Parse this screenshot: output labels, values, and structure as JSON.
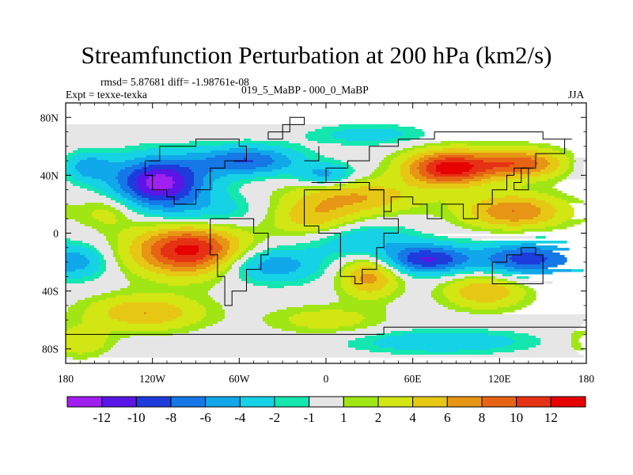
{
  "title": "Streamfunction Perturbation at 200 hPa (km2/s)",
  "stats": {
    "rmsd": "rmsd= 5.87681 diff= -1.98761e-08",
    "experiment": "Expt = texxe-texka",
    "comparison": "019_5_MaBP - 000_0_MaBP",
    "season": "JJA"
  },
  "map": {
    "projection": "cylindrical equidistant",
    "lon_range": [
      -180,
      180
    ],
    "lat_range": [
      -90,
      90
    ],
    "lon_ticks": [
      {
        "value": -180,
        "label": "180"
      },
      {
        "value": -120,
        "label": "120W"
      },
      {
        "value": -60,
        "label": "60W"
      },
      {
        "value": 0,
        "label": "0"
      },
      {
        "value": 60,
        "label": "60E"
      },
      {
        "value": 120,
        "label": "120E"
      },
      {
        "value": 180,
        "label": "180"
      }
    ],
    "lat_ticks": [
      {
        "value": 80,
        "label": "80N"
      },
      {
        "value": 40,
        "label": "40N"
      },
      {
        "value": 0,
        "label": "0"
      },
      {
        "value": -40,
        "label": "40S"
      },
      {
        "value": -80,
        "label": "80S"
      }
    ],
    "background_value_color": "#e8e8e8",
    "features": [
      {
        "lon": -115,
        "lat": 35,
        "value": -13,
        "rx": 32,
        "ry": 17
      },
      {
        "lon": -55,
        "lat": 50,
        "value": -8,
        "rx": 35,
        "ry": 10
      },
      {
        "lon": -165,
        "lat": 46,
        "value": -5,
        "rx": 18,
        "ry": 10
      },
      {
        "lon": -95,
        "lat": -12,
        "value": 13,
        "rx": 38,
        "ry": 17
      },
      {
        "lon": -80,
        "lat": 15,
        "value": -3,
        "rx": 40,
        "ry": 12
      },
      {
        "lon": -10,
        "lat": 10,
        "value": 5,
        "rx": 30,
        "ry": 12
      },
      {
        "lon": -40,
        "lat": -22,
        "value": -6,
        "rx": 35,
        "ry": 12
      },
      {
        "lon": -125,
        "lat": -55,
        "value": 6,
        "rx": 40,
        "ry": 12
      },
      {
        "lon": -170,
        "lat": -20,
        "value": -4,
        "rx": 20,
        "ry": 12
      },
      {
        "lon": -150,
        "lat": 15,
        "value": 3,
        "rx": 20,
        "ry": 12
      },
      {
        "lon": 85,
        "lat": 45,
        "value": 13,
        "rx": 30,
        "ry": 12
      },
      {
        "lon": 135,
        "lat": 48,
        "value": 9,
        "rx": 30,
        "ry": 10
      },
      {
        "lon": 130,
        "lat": 15,
        "value": 8,
        "rx": 35,
        "ry": 12
      },
      {
        "lon": 20,
        "lat": 25,
        "value": 6,
        "rx": 45,
        "ry": 12
      },
      {
        "lon": 30,
        "lat": 68,
        "value": -3,
        "rx": 40,
        "ry": 7
      },
      {
        "lon": 70,
        "lat": -18,
        "value": -10,
        "rx": 30,
        "ry": 10
      },
      {
        "lon": 140,
        "lat": -18,
        "value": -9,
        "rx": 35,
        "ry": 12
      },
      {
        "lon": 25,
        "lat": -5,
        "value": -4,
        "rx": 35,
        "ry": 12
      },
      {
        "lon": 30,
        "lat": -30,
        "value": 7,
        "rx": 20,
        "ry": 14
      },
      {
        "lon": 110,
        "lat": -40,
        "value": 6,
        "rx": 28,
        "ry": 12
      },
      {
        "lon": 0,
        "lat": -60,
        "value": 3,
        "rx": 40,
        "ry": 10
      },
      {
        "lon": 80,
        "lat": -75,
        "value": -4,
        "rx": 60,
        "ry": 8
      },
      {
        "lon": -170,
        "lat": -75,
        "value": 4,
        "rx": 20,
        "ry": 10
      },
      {
        "lon": 0,
        "lat": 40,
        "value": -5,
        "rx": 20,
        "ry": 8
      }
    ]
  },
  "colorbar": {
    "labels": [
      "-12",
      "-10",
      "-8",
      "-6",
      "-4",
      "-2",
      "-1",
      "1",
      "2",
      "4",
      "6",
      "8",
      "10",
      "12"
    ],
    "levels": [
      -12,
      -10,
      -8,
      -6,
      -4,
      -2,
      -1,
      1,
      2,
      4,
      6,
      8,
      10,
      12
    ],
    "colors": [
      "#a020f0",
      "#5a16e6",
      "#1e3cdc",
      "#1678e6",
      "#10a8ea",
      "#16d2e6",
      "#14e6b0",
      "#e6e6e6",
      "#a0e614",
      "#d2e614",
      "#e6c814",
      "#e69614",
      "#e66414",
      "#e63214",
      "#e60000"
    ]
  },
  "chart_data": {
    "type": "heatmap",
    "title": "Streamfunction Perturbation at 200 hPa (km2/s)",
    "variable": "Streamfunction Perturbation",
    "units": "km2/s",
    "level": "200 hPa",
    "x": [
      "180",
      "120W",
      "60W",
      "0",
      "60E",
      "120E",
      "180"
    ],
    "y": [
      "80N",
      "40N",
      "0",
      "40S",
      "80S"
    ],
    "levels": [
      -12,
      -10,
      -8,
      -6,
      -4,
      -2,
      -1,
      1,
      2,
      4,
      6,
      8,
      10,
      12
    ],
    "extremes": {
      "min_approx": -13,
      "max_approx": 13
    }
  }
}
